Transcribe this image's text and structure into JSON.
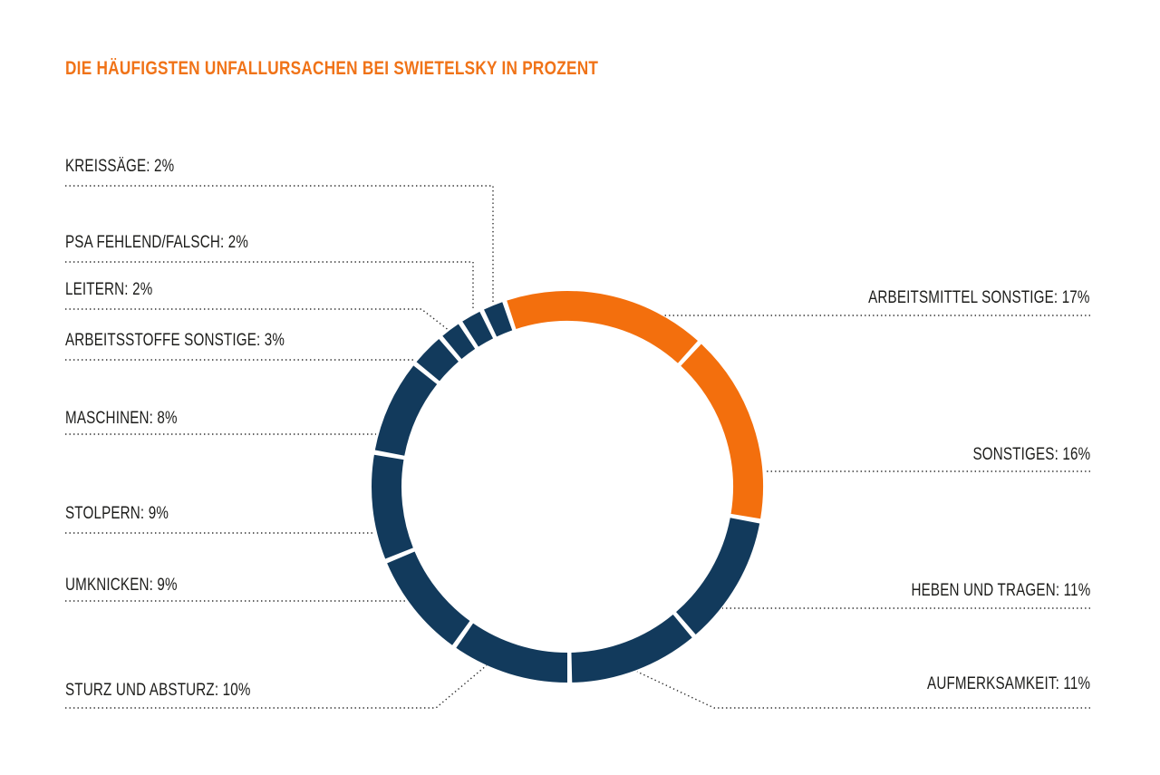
{
  "page": {
    "background": "#FFFFFF"
  },
  "chart_data": {
    "type": "pie",
    "subtype": "donut",
    "title": "DIE HÄUFIGSTEN UNFALLURSACHEN BEI SWIETELSKY IN PROZENT",
    "title_color": "#F07318",
    "unit": "%",
    "total": 100,
    "direction": "clockwise",
    "start_angle_deg": -18.7,
    "legend_position": "callout-labels",
    "colors": {
      "orange": "#F36F0D",
      "navy": "#123A5C",
      "label_text": "#1D1D1B",
      "leader_dots": "#2E2E2E"
    },
    "segments": [
      {
        "key": "arbeitsmittel",
        "label": "ARBEITSMITTEL SONSTIGE",
        "value": 17,
        "color": "orange",
        "display": "ARBEITSMITTEL SONSTIGE: 17%"
      },
      {
        "key": "sonstiges",
        "label": "SONSTIGES",
        "value": 16,
        "color": "orange",
        "display": "SONSTIGES: 16%"
      },
      {
        "key": "heben",
        "label": "HEBEN UND TRAGEN",
        "value": 11,
        "color": "navy",
        "display": "HEBEN UND TRAGEN: 11%"
      },
      {
        "key": "aufmerksamkeit",
        "label": "AUFMERKSAMKEIT",
        "value": 11,
        "color": "navy",
        "display": "AUFMERKSAMKEIT: 11%"
      },
      {
        "key": "sturz",
        "label": "STURZ UND ABSTURZ",
        "value": 10,
        "color": "navy",
        "display": "STURZ UND ABSTURZ: 10%"
      },
      {
        "key": "umknicken",
        "label": "UMKNICKEN",
        "value": 9,
        "color": "navy",
        "display": "UMKNICKEN: 9%"
      },
      {
        "key": "stolpern",
        "label": "STOLPERN",
        "value": 9,
        "color": "navy",
        "display": "STOLPERN: 9%"
      },
      {
        "key": "maschinen",
        "label": "MASCHINEN",
        "value": 8,
        "color": "navy",
        "display": "MASCHINEN: 8%"
      },
      {
        "key": "arbeitsstoffe",
        "label": "ARBEITSSTOFFE SONSTIGE",
        "value": 3,
        "color": "navy",
        "display": "ARBEITSSTOFFE SONSTIGE: 3%"
      },
      {
        "key": "leitern",
        "label": "LEITERN",
        "value": 2,
        "color": "navy",
        "display": "LEITERN: 2%"
      },
      {
        "key": "psa",
        "label": "PSA FEHLEND/FALSCH",
        "value": 2,
        "color": "navy",
        "display": "PSA FEHLEND/FALSCH: 2%"
      },
      {
        "key": "kreissaege",
        "label": "KREISSÄGE",
        "value": 2,
        "color": "navy",
        "display": "KREISSÄGE: 2%"
      }
    ]
  }
}
